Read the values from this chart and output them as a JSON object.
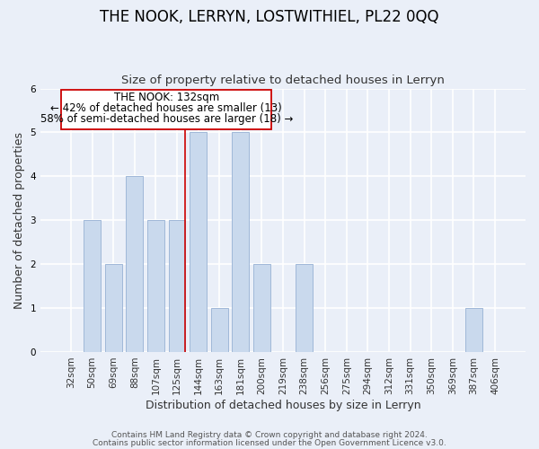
{
  "title": "THE NOOK, LERRYN, LOSTWITHIEL, PL22 0QQ",
  "subtitle": "Size of property relative to detached houses in Lerryn",
  "xlabel": "Distribution of detached houses by size in Lerryn",
  "ylabel": "Number of detached properties",
  "categories": [
    "32sqm",
    "50sqm",
    "69sqm",
    "88sqm",
    "107sqm",
    "125sqm",
    "144sqm",
    "163sqm",
    "181sqm",
    "200sqm",
    "219sqm",
    "238sqm",
    "256sqm",
    "275sqm",
    "294sqm",
    "312sqm",
    "331sqm",
    "350sqm",
    "369sqm",
    "387sqm",
    "406sqm"
  ],
  "values": [
    0,
    3,
    2,
    4,
    3,
    3,
    5,
    1,
    5,
    2,
    0,
    2,
    0,
    0,
    0,
    0,
    0,
    0,
    0,
    1,
    0
  ],
  "bar_color": "#c9d9ed",
  "bar_edge_color": "#a0b8d8",
  "bar_width": 0.8,
  "ylim": [
    0,
    6
  ],
  "yticks": [
    0,
    1,
    2,
    3,
    4,
    5,
    6
  ],
  "red_line_label": "THE NOOK: 132sqm",
  "annotation_line1": "← 42% of detached houses are smaller (13)",
  "annotation_line2": "58% of semi-detached houses are larger (18) →",
  "footnote1": "Contains HM Land Registry data © Crown copyright and database right 2024.",
  "footnote2": "Contains public sector information licensed under the Open Government Licence v3.0.",
  "title_fontsize": 12,
  "subtitle_fontsize": 9.5,
  "axis_label_fontsize": 9,
  "tick_fontsize": 7.5,
  "annotation_fontsize": 8.5,
  "footnote_fontsize": 6.5,
  "bg_color": "#eaeff8",
  "plot_bg_color": "#eaeff8",
  "grid_color": "#ffffff",
  "red_line_color": "#cc0000"
}
